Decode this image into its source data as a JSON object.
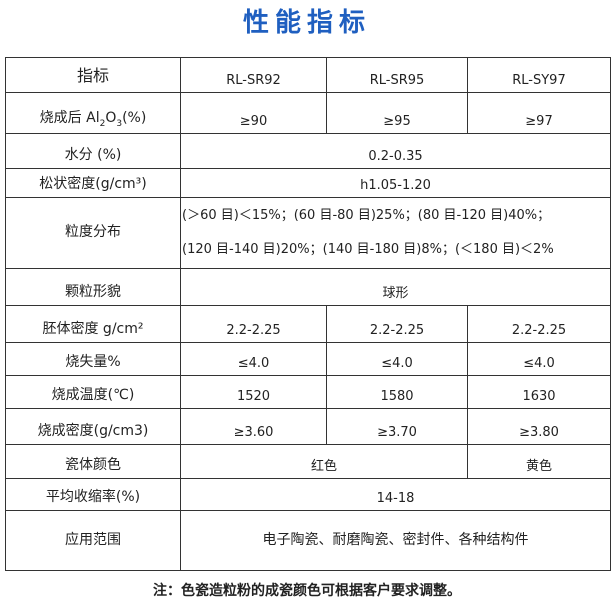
{
  "title": "性能指标",
  "header": {
    "label": "指标",
    "products": [
      "RL-SR92",
      "RL-SR95",
      "RL-SY97"
    ]
  },
  "rows": {
    "al2o3": {
      "label_pre": "烧成后 Al",
      "label_sub1": "2",
      "label_mid": "O",
      "label_sub2": "3",
      "label_post": "(%)",
      "values": [
        "≥90",
        "≥95",
        "≥97"
      ]
    },
    "water": {
      "label": "水分 (%)",
      "value": "0.2-0.35"
    },
    "loose_density": {
      "label": "松状密度(g/cm³)",
      "value": "h1.05-1.20"
    },
    "particle_size": {
      "label": "粒度分布",
      "line1": "(＞60 目)＜15%；(60 目-80 目)25%；(80 目-120 目)40%；",
      "line2": "(120 目-140 目)20%；(140 目-180 目)8%；(＜180 目)＜2%"
    },
    "morphology": {
      "label": "颗粒形貌",
      "value": "球形"
    },
    "green_density": {
      "label": "胚体密度 g/cm²",
      "values": [
        "2.2-2.25",
        "2.2-2.25",
        "2.2-2.25"
      ]
    },
    "loss": {
      "label": "烧失量%",
      "values": [
        "≤4.0",
        "≤4.0",
        "≤4.0"
      ]
    },
    "firing_temp": {
      "label": "烧成温度(℃)",
      "values": [
        "1520",
        "1580",
        "1630"
      ]
    },
    "fired_density": {
      "label": "烧成密度(g/cm3)",
      "values": [
        "≥3.60",
        "≥3.70",
        "≥3.80"
      ]
    },
    "color": {
      "label": "瓷体颜色",
      "value_red": "红色",
      "value_yellow": "黄色"
    },
    "shrinkage": {
      "label": "平均收缩率(%)",
      "value": "14-18"
    },
    "application": {
      "label": "应用范围",
      "value": "电子陶瓷、耐磨陶瓷、密封件、各种结构件"
    }
  },
  "note": "注：色瓷造粒粉的成瓷颜色可根据客户要求调整。"
}
